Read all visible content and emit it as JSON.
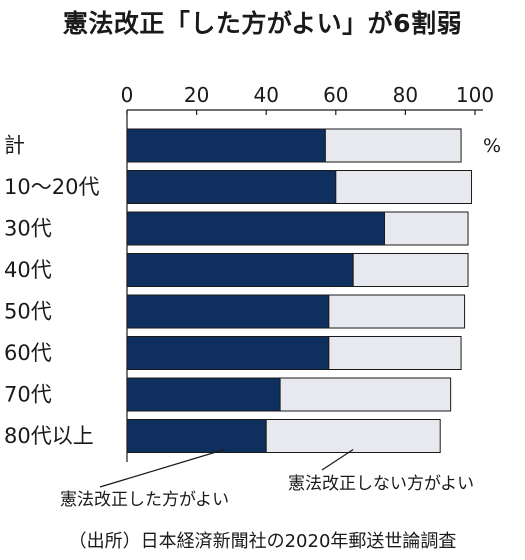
{
  "title": "憲法改正「した方がよい」が6割弱",
  "source": "（出所）日本経済新聞社の2020年郵送世論調査",
  "colors": {
    "support": "#0f2f5e",
    "oppose": "#e8e9ee",
    "stroke": "#1a1a1a"
  },
  "chart_data": {
    "type": "bar",
    "orientation": "horizontal",
    "stacked": true,
    "unit": "%",
    "xlim": [
      0,
      100
    ],
    "xticks": [
      0,
      20,
      40,
      60,
      80,
      100
    ],
    "categories": [
      "計",
      "10～20代",
      "30代",
      "40代",
      "50代",
      "60代",
      "70代",
      "80代以上"
    ],
    "series": [
      {
        "name": "憲法改正した方がよい",
        "values": [
          57,
          60,
          74,
          65,
          58,
          58,
          44,
          40
        ]
      },
      {
        "name": "憲法改正しない方がよい",
        "values": [
          39,
          39,
          24,
          33,
          39,
          38,
          49,
          50
        ]
      }
    ]
  }
}
